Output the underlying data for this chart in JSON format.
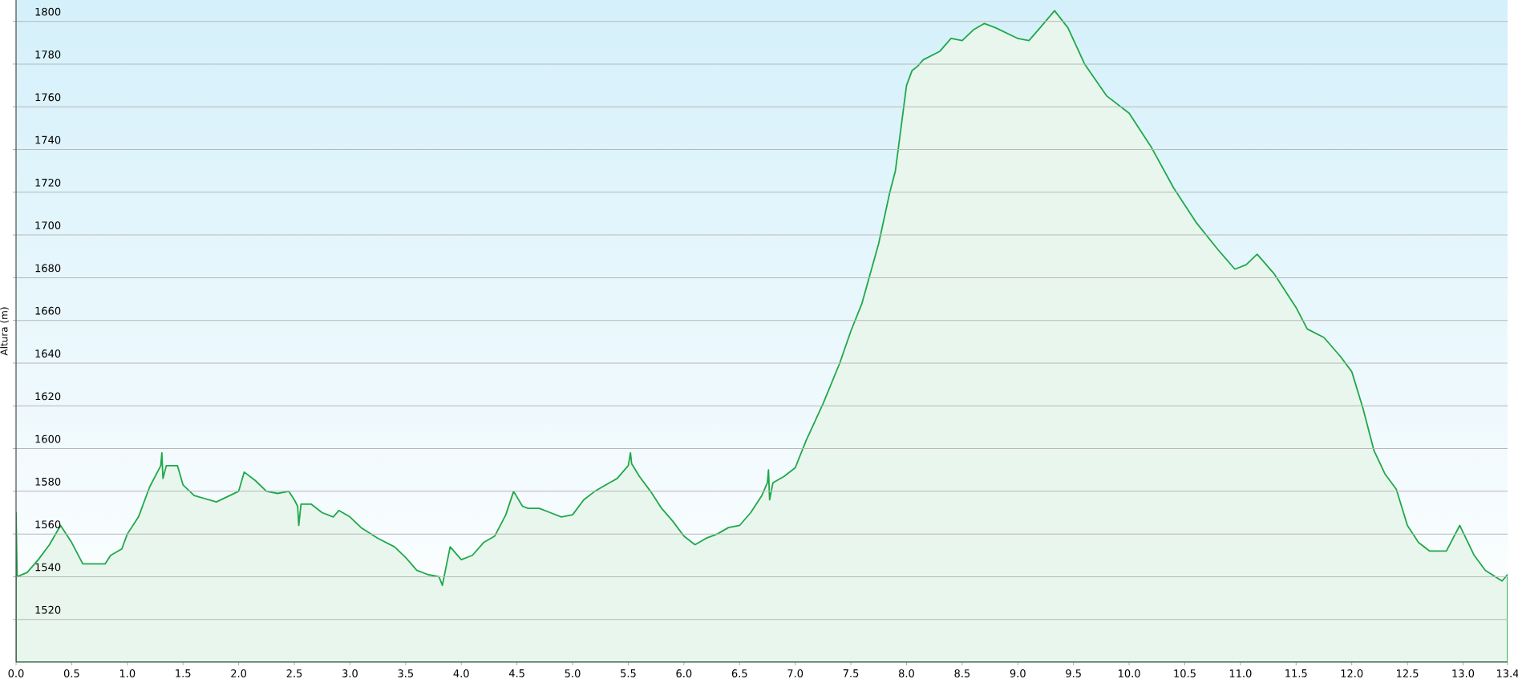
{
  "chart_data": {
    "type": "area",
    "ylabel": "Altura (m)",
    "x": [
      0.0,
      0.01,
      0.1,
      0.2,
      0.3,
      0.4,
      0.5,
      0.6,
      0.7,
      0.8,
      0.85,
      0.95,
      1.0,
      1.1,
      1.2,
      1.3,
      1.31,
      1.32,
      1.35,
      1.45,
      1.5,
      1.6,
      1.8,
      2.0,
      2.05,
      2.15,
      2.25,
      2.35,
      2.45,
      2.5,
      2.53,
      2.54,
      2.56,
      2.65,
      2.75,
      2.85,
      2.9,
      3.0,
      3.1,
      3.25,
      3.4,
      3.5,
      3.6,
      3.7,
      3.8,
      3.83,
      3.9,
      4.0,
      4.1,
      4.2,
      4.3,
      4.4,
      4.47,
      4.55,
      4.6,
      4.7,
      4.8,
      4.9,
      5.0,
      5.1,
      5.2,
      5.3,
      5.4,
      5.5,
      5.52,
      5.53,
      5.6,
      5.7,
      5.8,
      5.9,
      6.0,
      6.1,
      6.2,
      6.3,
      6.4,
      6.5,
      6.6,
      6.7,
      6.75,
      6.76,
      6.77,
      6.8,
      6.9,
      7.0,
      7.1,
      7.25,
      7.4,
      7.5,
      7.6,
      7.75,
      7.85,
      7.9,
      8.0,
      8.05,
      8.1,
      8.15,
      8.3,
      8.4,
      8.5,
      8.6,
      8.7,
      8.8,
      9.0,
      9.1,
      9.2,
      9.33,
      9.45,
      9.6,
      9.8,
      10.0,
      10.2,
      10.4,
      10.6,
      10.8,
      10.95,
      11.05,
      11.15,
      11.3,
      11.5,
      11.6,
      11.75,
      11.9,
      12.0,
      12.1,
      12.2,
      12.3,
      12.4,
      12.5,
      12.6,
      12.7,
      12.85,
      12.97,
      13.1,
      13.2,
      13.35,
      13.4
    ],
    "series": [
      {
        "color": "#1fa84a",
        "values": [
          1570,
          1540,
          1542,
          1548,
          1555,
          1564,
          1556,
          1546,
          1546,
          1546,
          1550,
          1553,
          1560,
          1568,
          1582,
          1592,
          1598,
          1586,
          1592,
          1592,
          1583,
          1578,
          1575,
          1580,
          1589,
          1585,
          1580,
          1579,
          1580,
          1576,
          1573,
          1564,
          1574,
          1574,
          1570,
          1568,
          1571,
          1568,
          1563,
          1558,
          1554,
          1549,
          1543,
          1541,
          1540,
          1536,
          1554,
          1548,
          1550,
          1556,
          1559,
          1569,
          1580,
          1573,
          1572,
          1572,
          1570,
          1568,
          1569,
          1576,
          1580,
          1583,
          1586,
          1592,
          1598,
          1593,
          1587,
          1580,
          1572,
          1566,
          1559,
          1555,
          1558,
          1560,
          1563,
          1564,
          1570,
          1578,
          1584,
          1590,
          1576,
          1584,
          1587,
          1591,
          1604,
          1621,
          1640,
          1655,
          1668,
          1696,
          1720,
          1730,
          1770,
          1777,
          1779,
          1782,
          1786,
          1792,
          1791,
          1796,
          1799,
          1797,
          1792,
          1791,
          1797,
          1805,
          1797,
          1780,
          1765,
          1757,
          1741,
          1722,
          1706,
          1693,
          1684,
          1686,
          1691,
          1682,
          1666,
          1656,
          1652,
          1643,
          1636,
          1619,
          1599,
          1588,
          1581,
          1564,
          1556,
          1552,
          1552,
          1564,
          1550,
          1543,
          1538,
          1541
        ]
      }
    ],
    "xlim": [
      0,
      13.4
    ],
    "ylim": [
      1500,
      1810
    ],
    "xticks": [
      {
        "value": 0,
        "label": "0.0"
      },
      0.5,
      {
        "value": 1,
        "label": "1.0"
      },
      1.5,
      {
        "value": 2,
        "label": "2.0"
      },
      2.5,
      {
        "value": 3,
        "label": "3.0"
      },
      3.5,
      {
        "value": 4,
        "label": "4.0"
      },
      4.5,
      {
        "value": 5,
        "label": "5.0"
      },
      5.5,
      {
        "value": 6,
        "label": "6.0"
      },
      6.5,
      {
        "value": 7,
        "label": "7.0"
      },
      7.5,
      {
        "value": 8,
        "label": "8.0"
      },
      8.5,
      {
        "value": 9,
        "label": "9.0"
      },
      9.5,
      {
        "value": 10,
        "label": "10.0"
      },
      10.5,
      {
        "value": 11,
        "label": "11.0"
      },
      11.5,
      {
        "value": 12,
        "label": "12.0"
      },
      12.5,
      {
        "value": 13,
        "label": "13.0"
      },
      13.4
    ],
    "yticks": [
      1520,
      1540,
      1560,
      1580,
      1600,
      1620,
      1640,
      1660,
      1680,
      1700,
      1720,
      1740,
      1760,
      1780,
      1800
    ],
    "grid": "y"
  }
}
